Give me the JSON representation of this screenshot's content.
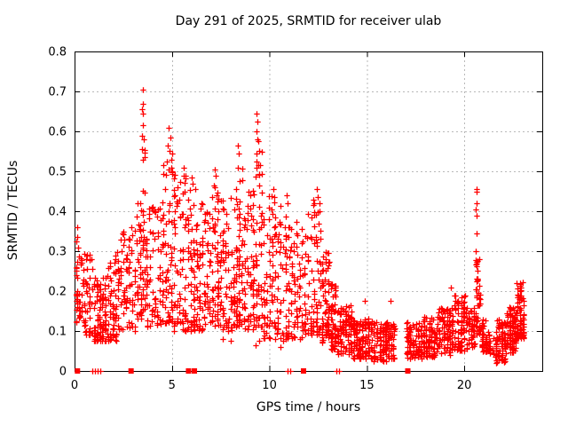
{
  "chart_data": {
    "type": "scatter",
    "title": "Day 291 of 2025, SRMTID for receiver ulab",
    "xlabel": "GPS time / hours",
    "ylabel": "SRMTID / TECUs",
    "xlim": [
      0,
      24
    ],
    "ylim": [
      0,
      0.8
    ],
    "xticks": [
      0,
      5,
      10,
      15,
      20
    ],
    "xtick_labels": [
      "0",
      "5",
      "10",
      "15",
      "20"
    ],
    "yticks": [
      0,
      0.1,
      0.2,
      0.3,
      0.4,
      0.5,
      0.6,
      0.7,
      0.8
    ],
    "ytick_labels": [
      "0",
      "0.1",
      "0.2",
      "0.3",
      "0.4",
      "0.5",
      "0.6",
      "0.7",
      "0.8"
    ],
    "grid": true,
    "legend": "none",
    "colors": {
      "marker": "#ff0000",
      "grid": "#b9b9b9",
      "axis": "#000000",
      "text": "#000000",
      "background": "#ffffff"
    },
    "series": [
      {
        "name": "srmtid",
        "marker": "plus",
        "clusters": [
          [
            0.05,
            0.3,
            0.11,
            0.3,
            28,
            1.2
          ],
          [
            0.3,
            0.95,
            0.09,
            0.3,
            55,
            1.4
          ],
          [
            0.95,
            1.65,
            0.075,
            0.24,
            95,
            1.5
          ],
          [
            1.65,
            2.3,
            0.075,
            0.3,
            75,
            1.5
          ],
          [
            2.3,
            3.15,
            0.1,
            0.36,
            65,
            1.4
          ],
          [
            3.15,
            3.45,
            0.13,
            0.48,
            40,
            1.5
          ],
          [
            3.45,
            3.65,
            0.15,
            0.6,
            30,
            1.8
          ],
          [
            3.65,
            4.45,
            0.11,
            0.42,
            70,
            1.4
          ],
          [
            4.45,
            5.05,
            0.12,
            0.55,
            70,
            1.6
          ],
          [
            5.05,
            5.75,
            0.1,
            0.5,
            75,
            1.6
          ],
          [
            5.75,
            6.35,
            0.1,
            0.46,
            70,
            1.5
          ],
          [
            6.35,
            7.0,
            0.1,
            0.42,
            65,
            1.4
          ],
          [
            7.0,
            7.55,
            0.11,
            0.48,
            65,
            1.5
          ],
          [
            7.55,
            8.25,
            0.1,
            0.44,
            70,
            1.4
          ],
          [
            8.25,
            8.65,
            0.11,
            0.52,
            55,
            1.6
          ],
          [
            8.65,
            9.25,
            0.1,
            0.47,
            65,
            1.4
          ],
          [
            9.25,
            9.65,
            0.11,
            0.58,
            50,
            1.7
          ],
          [
            9.65,
            10.35,
            0.08,
            0.44,
            70,
            1.4
          ],
          [
            10.35,
            11.05,
            0.08,
            0.42,
            65,
            1.4
          ],
          [
            11.05,
            11.75,
            0.08,
            0.38,
            60,
            1.4
          ],
          [
            11.75,
            12.65,
            0.09,
            0.44,
            85,
            1.5
          ],
          [
            12.65,
            13.1,
            0.07,
            0.3,
            70,
            1.4
          ],
          [
            13.1,
            13.45,
            0.05,
            0.22,
            55,
            1.3
          ],
          [
            13.45,
            14.25,
            0.04,
            0.17,
            95,
            1.3
          ],
          [
            14.25,
            15.15,
            0.03,
            0.135,
            105,
            1.2
          ],
          [
            15.15,
            16.05,
            0.025,
            0.125,
            105,
            1.2
          ],
          [
            16.05,
            16.45,
            0.03,
            0.12,
            48,
            1.2
          ],
          [
            17.0,
            17.85,
            0.03,
            0.125,
            95,
            1.2
          ],
          [
            17.85,
            18.65,
            0.035,
            0.14,
            95,
            1.2
          ],
          [
            18.65,
            19.45,
            0.04,
            0.16,
            90,
            1.3
          ],
          [
            19.45,
            20.05,
            0.05,
            0.19,
            70,
            1.3
          ],
          [
            20.05,
            20.55,
            0.055,
            0.16,
            50,
            1.3
          ],
          [
            20.55,
            20.85,
            0.09,
            0.28,
            45,
            1.5
          ],
          [
            20.85,
            21.2,
            0.045,
            0.13,
            40,
            1.2
          ],
          [
            21.2,
            21.55,
            0.04,
            0.1,
            18,
            1.2
          ],
          [
            21.55,
            22.15,
            0.02,
            0.13,
            85,
            1.2
          ],
          [
            22.15,
            22.65,
            0.045,
            0.165,
            85,
            1.2
          ],
          [
            22.65,
            23.1,
            0.08,
            0.225,
            80,
            1.3
          ]
        ],
        "points": [
          [
            0.12,
            0.36
          ],
          [
            0.15,
            0.335
          ],
          [
            0.1,
            0.325
          ],
          [
            0.18,
            0.31
          ],
          [
            2.52,
            0.35
          ],
          [
            2.56,
            0.33
          ],
          [
            3.5,
            0.705
          ],
          [
            3.5,
            0.67
          ],
          [
            3.47,
            0.655
          ],
          [
            3.52,
            0.645
          ],
          [
            3.5,
            0.615
          ],
          [
            3.55,
            0.58
          ],
          [
            3.45,
            0.555
          ],
          [
            3.5,
            0.53
          ],
          [
            4.85,
            0.61
          ],
          [
            4.9,
            0.585
          ],
          [
            4.8,
            0.565
          ],
          [
            4.88,
            0.55
          ],
          [
            4.75,
            0.525
          ],
          [
            4.95,
            0.51
          ],
          [
            5.6,
            0.51
          ],
          [
            5.62,
            0.49
          ],
          [
            6.0,
            0.485
          ],
          [
            6.05,
            0.47
          ],
          [
            6.2,
            0.455
          ],
          [
            7.2,
            0.505
          ],
          [
            7.25,
            0.49
          ],
          [
            7.15,
            0.465
          ],
          [
            7.3,
            0.44
          ],
          [
            8.4,
            0.565
          ],
          [
            8.42,
            0.545
          ],
          [
            8.38,
            0.51
          ],
          [
            8.45,
            0.475
          ],
          [
            9.35,
            0.645
          ],
          [
            9.37,
            0.625
          ],
          [
            9.33,
            0.6
          ],
          [
            9.4,
            0.58
          ],
          [
            9.45,
            0.55
          ],
          [
            9.5,
            0.515
          ],
          [
            10.2,
            0.455
          ],
          [
            10.25,
            0.435
          ],
          [
            10.9,
            0.44
          ],
          [
            10.95,
            0.42
          ],
          [
            12.3,
            0.42
          ],
          [
            12.45,
            0.455
          ],
          [
            12.5,
            0.435
          ],
          [
            12.55,
            0.42
          ],
          [
            20.62,
            0.455
          ],
          [
            20.64,
            0.448
          ],
          [
            20.62,
            0.42
          ],
          [
            20.6,
            0.405
          ],
          [
            20.63,
            0.39
          ],
          [
            20.62,
            0.345
          ],
          [
            20.6,
            0.3
          ],
          [
            20.65,
            0.27
          ],
          [
            20.63,
            0.262
          ],
          [
            14.9,
            0.175
          ],
          [
            16.2,
            0.175
          ],
          [
            19.3,
            0.21
          ],
          [
            9.3,
            0.065
          ],
          [
            9.45,
            0.075
          ],
          [
            10.55,
            0.06
          ],
          [
            10.7,
            0.075
          ],
          [
            8.0,
            0.075
          ],
          [
            7.6,
            0.08
          ]
        ]
      },
      {
        "name": "zero-flag-squares",
        "marker": "square",
        "points": [
          [
            0.15,
            0
          ],
          [
            2.9,
            0
          ],
          [
            5.85,
            0
          ],
          [
            6.15,
            0
          ],
          [
            11.75,
            0
          ],
          [
            17.1,
            0
          ]
        ]
      },
      {
        "name": "zero-flag-ticks",
        "marker": "plus",
        "points": [
          [
            0.9,
            0
          ],
          [
            1.05,
            0
          ],
          [
            1.2,
            0
          ],
          [
            1.32,
            0
          ],
          [
            10.95,
            0
          ],
          [
            11.05,
            0
          ],
          [
            13.42,
            0
          ],
          [
            13.55,
            0
          ]
        ]
      }
    ]
  }
}
